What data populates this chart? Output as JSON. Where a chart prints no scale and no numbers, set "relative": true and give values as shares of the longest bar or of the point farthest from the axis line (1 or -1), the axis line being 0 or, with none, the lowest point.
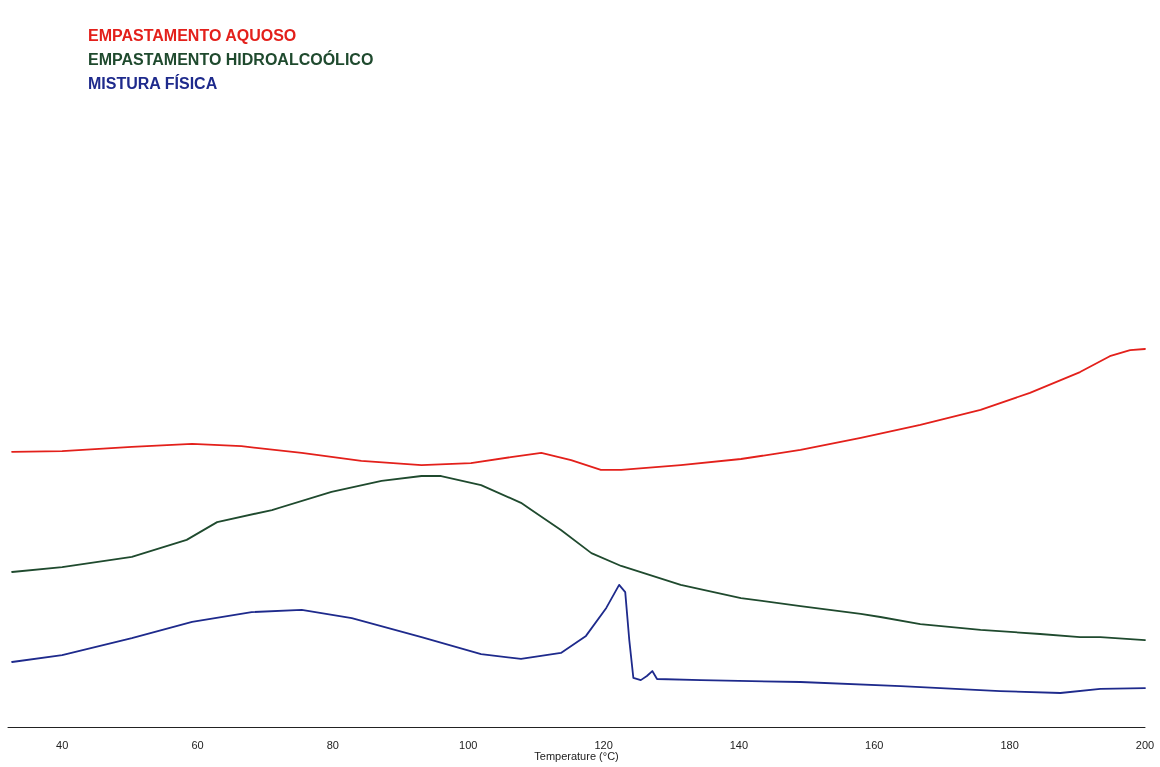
{
  "chart_data": {
    "type": "line",
    "relative": true,
    "xlabel": "Temperature (°C)",
    "xlim": [
      32,
      200
    ],
    "xticks": [
      40,
      60,
      80,
      100,
      120,
      140,
      160,
      180,
      200
    ],
    "legend": "top left",
    "grid": false,
    "marker": "none",
    "series": [
      {
        "name": "EMPASTAMENTO AQUOSO",
        "color": "#e3201b",
        "x": [
          32.6,
          40,
          50.3,
          59.2,
          66.5,
          75.4,
          84.2,
          93.1,
          100.4,
          106.3,
          110.8,
          115.2,
          119.6,
          122.6,
          131.4,
          140.3,
          149.1,
          158.0,
          166.8,
          175.7,
          183.0,
          190.4,
          194.8,
          197.8,
          200
        ],
        "values": [
          0.728,
          0.73,
          0.741,
          0.749,
          0.743,
          0.725,
          0.704,
          0.693,
          0.698,
          0.714,
          0.725,
          0.706,
          0.68,
          0.68,
          0.693,
          0.709,
          0.733,
          0.765,
          0.799,
          0.839,
          0.884,
          0.939,
          0.981,
          0.997,
          1.0
        ]
      },
      {
        "name": "EMPASTAMENTO HIDROALCOÓLICO",
        "color": "#1f4a2e",
        "x": [
          32.6,
          40,
          50.3,
          58.4,
          62.9,
          71.0,
          79.8,
          87.2,
          93.1,
          96.0,
          101.9,
          107.8,
          113.7,
          118.2,
          122.6,
          131.4,
          140.3,
          149.1,
          158.0,
          160.9,
          166.8,
          175.7,
          184.5,
          190.4,
          193.4,
          200
        ],
        "values": [
          0.41,
          0.423,
          0.45,
          0.495,
          0.542,
          0.574,
          0.622,
          0.651,
          0.664,
          0.664,
          0.64,
          0.593,
          0.521,
          0.46,
          0.426,
          0.376,
          0.341,
          0.32,
          0.299,
          0.291,
          0.272,
          0.257,
          0.246,
          0.238,
          0.238,
          0.23
        ]
      },
      {
        "name": "MISTURA FÍSICA",
        "color": "#1e2a8c",
        "x": [
          32.6,
          40,
          50.3,
          59.2,
          68.0,
          75.4,
          82.8,
          93.1,
          101.9,
          107.8,
          113.7,
          117.4,
          120.4,
          122.3,
          123.2,
          123.8,
          124.4,
          125.5,
          126.4,
          127.2,
          127.9,
          134.4,
          149.1,
          163.9,
          178.6,
          187.5,
          193.4,
          200
        ],
        "values": [
          0.172,
          0.19,
          0.235,
          0.278,
          0.304,
          0.31,
          0.288,
          0.238,
          0.193,
          0.18,
          0.196,
          0.241,
          0.315,
          0.376,
          0.357,
          0.23,
          0.13,
          0.124,
          0.135,
          0.148,
          0.127,
          0.124,
          0.119,
          0.108,
          0.095,
          0.09,
          0.101,
          0.103
        ]
      }
    ]
  }
}
